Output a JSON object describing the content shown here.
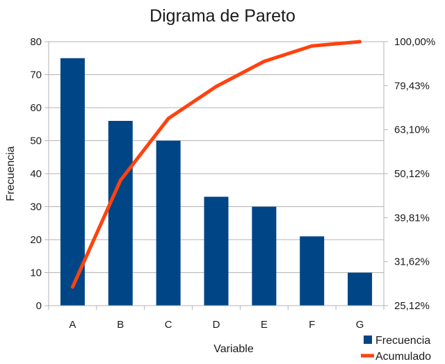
{
  "chart_data": {
    "type": "bar",
    "title": "Digrama de Pareto",
    "xlabel": "Variable",
    "ylabel": "Frecuencia",
    "categories": [
      "A",
      "B",
      "C",
      "D",
      "E",
      "F",
      "G"
    ],
    "ylim": [
      0,
      80
    ],
    "yticks": [
      "0",
      "10",
      "20",
      "30",
      "40",
      "50",
      "60",
      "70",
      "80"
    ],
    "y2ticks": [
      "25,12%",
      "31,62%",
      "39,81%",
      "50,12%",
      "63,10%",
      "79,43%",
      "100,00%"
    ],
    "y2scale": "log",
    "grid": true,
    "legend_position": "bottom-right",
    "series": [
      {
        "name": "Frecuencia",
        "type": "bar",
        "axis": "left",
        "color": "#004586",
        "values": [
          75,
          56,
          50,
          33,
          30,
          21,
          10
        ]
      },
      {
        "name": "Acumulado",
        "type": "line",
        "axis": "right",
        "color": "#ff420e",
        "values": [
          27.7,
          48.4,
          66.9,
          79.1,
          90.2,
          97.8,
          100.0
        ]
      }
    ]
  }
}
